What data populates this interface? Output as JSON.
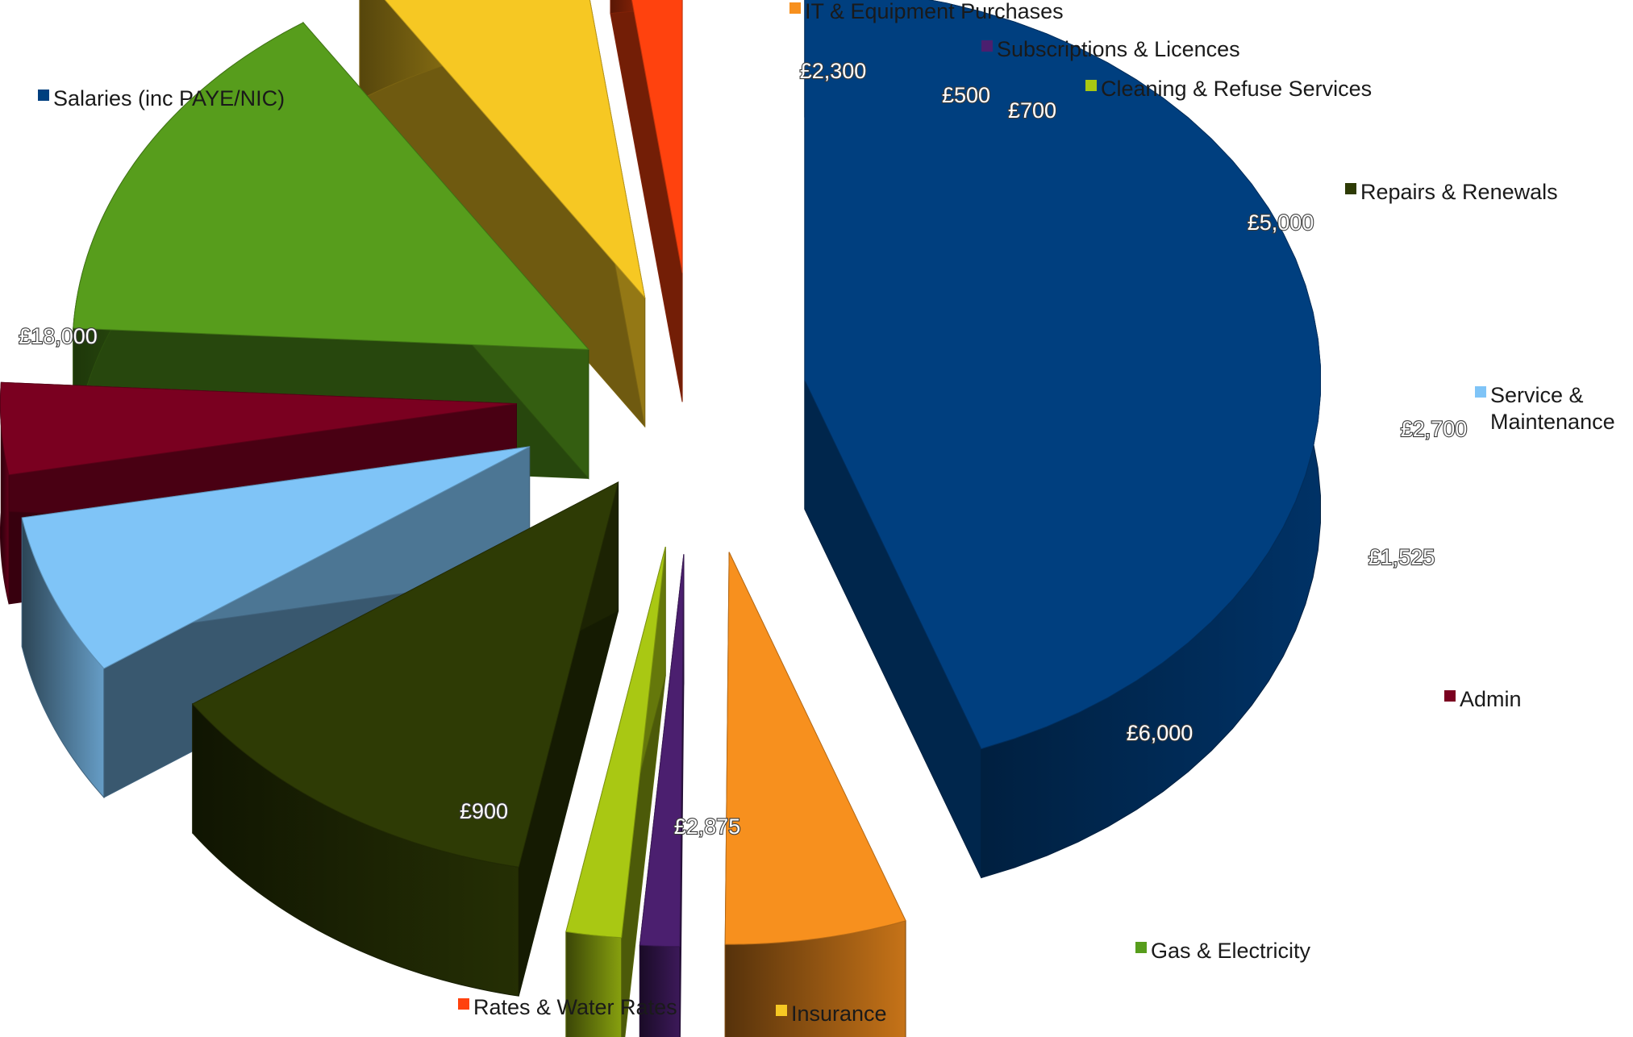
{
  "chart_data": {
    "type": "pie",
    "style": "3d-exploded",
    "title": "",
    "currency": "£",
    "slices": [
      {
        "key": "salaries",
        "category": "Salaries (inc PAYE/NIC)",
        "value": 18000,
        "value_label": "£18,000",
        "color": "#003F7F"
      },
      {
        "key": "it",
        "category": "IT & Equipment Purchases",
        "value": 2300,
        "value_label": "£2,300",
        "color": "#F7901E"
      },
      {
        "key": "subscriptions",
        "category": "Subscriptions & Licences",
        "value": 500,
        "value_label": "£500",
        "color": "#4B1F6F"
      },
      {
        "key": "cleaning",
        "category": "Cleaning & Refuse Services",
        "value": 700,
        "value_label": "£700",
        "color": "#A9C813"
      },
      {
        "key": "repairs",
        "category": "Repairs & Renewals",
        "value": 5000,
        "value_label": "£5,000",
        "color": "#2E3B05"
      },
      {
        "key": "service",
        "category": "Service & Maintenance",
        "value": 2700,
        "value_label": "£2,700",
        "color": "#7FC4F7"
      },
      {
        "key": "admin",
        "category": "Admin",
        "value": 1525,
        "value_label": "£1,525",
        "color": "#7A0020"
      },
      {
        "key": "gas",
        "category": "Gas & Electricity",
        "value": 6000,
        "value_label": "£6,000",
        "color": "#579D1C"
      },
      {
        "key": "insurance",
        "category": "Insurance",
        "value": 2875,
        "value_label": "£2,875",
        "color": "#F6C823"
      },
      {
        "key": "rates",
        "category": "Rates & Water Rates",
        "value": 900,
        "value_label": "£900",
        "color": "#FF420E"
      }
    ],
    "legend": "labels beside slices"
  }
}
